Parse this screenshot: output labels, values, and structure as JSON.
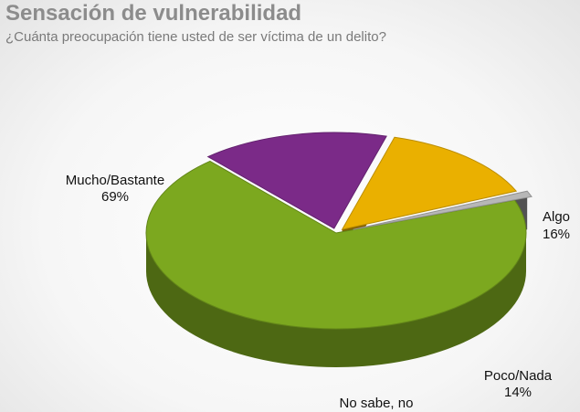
{
  "title": "Sensación de vulnerabilidad",
  "subtitle": "¿Cuánta preocupación tiene usted de ser víctima de un delito?",
  "chart_data": {
    "type": "pie",
    "title": "Sensación de vulnerabilidad",
    "subtitle": "¿Cuánta preocupación tiene usted de ser víctima de un delito?",
    "slices": [
      {
        "label": "Mucho/Bastante",
        "value": 69,
        "value_label": "69%",
        "color": "#7ca81f"
      },
      {
        "label": "Algo",
        "value": 16,
        "value_label": "16%",
        "color": "#7b2a88"
      },
      {
        "label": "Poco/Nada",
        "value": 14,
        "value_label": "14%",
        "color": "#eab000"
      },
      {
        "label": "No sabe, no",
        "value": 1,
        "value_label": "",
        "color": "#b7b7b7"
      }
    ]
  }
}
